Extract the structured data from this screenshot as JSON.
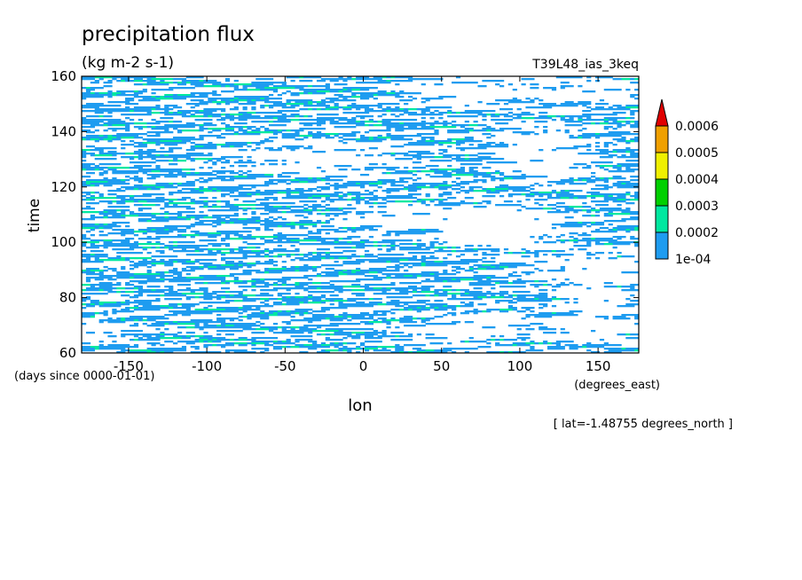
{
  "chart_data": {
    "type": "heatmap",
    "title": "precipitation flux",
    "subtitle": "(kg m-2 s-1)",
    "run_label": "T39L48_ias_3keq",
    "xlabel": "lon",
    "x_units": "(degrees_east)",
    "ylabel": "time",
    "y_units": "(days since 0000-01-01)",
    "footnote": "[ lat=-1.48755 degrees_north ]",
    "xlim": [
      -180,
      176
    ],
    "ylim": [
      60,
      160
    ],
    "x_ticks": [
      -150,
      -100,
      -50,
      0,
      50,
      100,
      150
    ],
    "y_ticks": [
      60,
      80,
      100,
      120,
      140,
      160
    ],
    "tick_labels_x": [
      "-150",
      "-100",
      "-50",
      "0",
      "50",
      "100",
      "150"
    ],
    "tick_labels_y": [
      "60",
      "80",
      "100",
      "120",
      "140",
      "160"
    ],
    "colorbar": {
      "levels": [
        0.0001,
        0.0002,
        0.0003,
        0.0004,
        0.0005,
        0.0006
      ],
      "level_labels": [
        "1e-04",
        "0.0002",
        "0.0003",
        "0.0004",
        "0.0005",
        "0.0006"
      ],
      "colors": [
        "#1e9cf0",
        "#00e8a0",
        "#00d000",
        "#f0f000",
        "#f0a000",
        "#e00000"
      ],
      "extend": "max"
    },
    "grid": false
  }
}
